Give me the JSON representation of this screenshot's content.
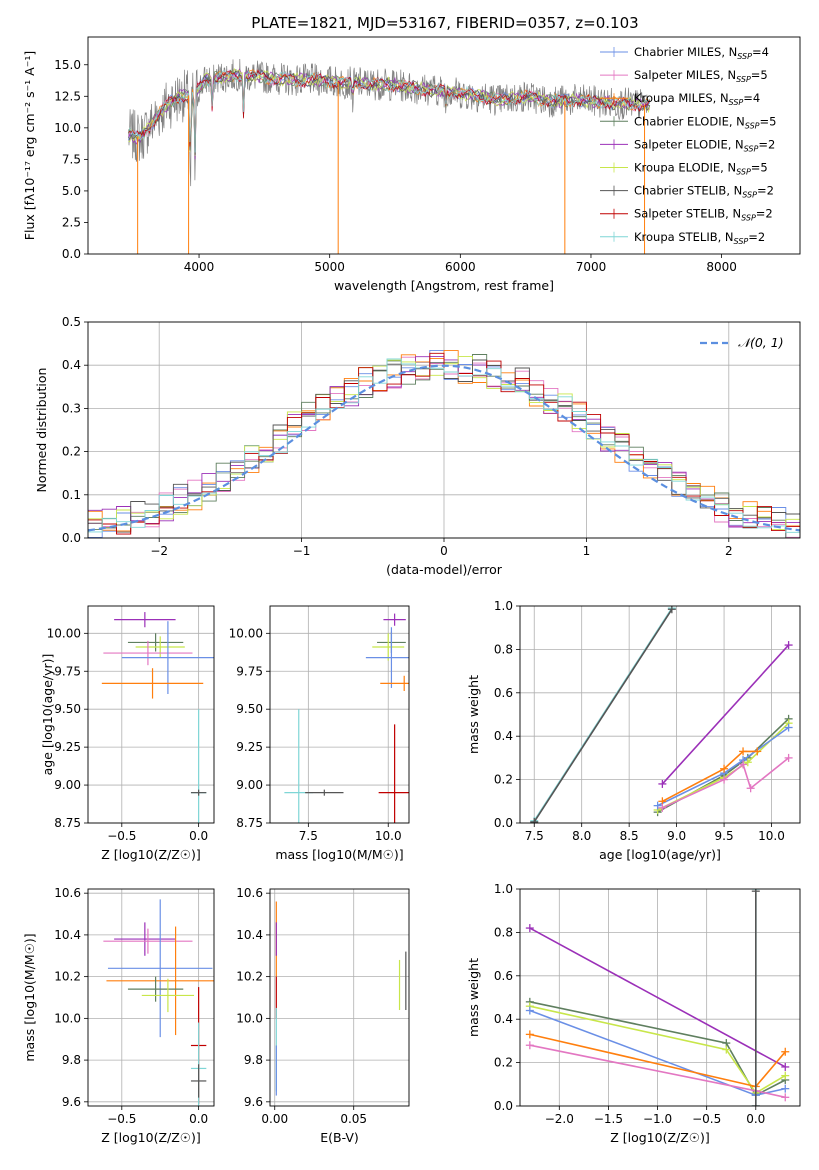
{
  "figure_title": "PLATE=1821, MJD=53167, FIBERID=0357, z=0.103",
  "colors": {
    "Chabrier MILES": "#1f77b4",
    "Salpeter MILES": "#e377c2",
    "Kroupa MILES": "#ff7f0e",
    "Chabrier ELODIE": "#5f7f5f",
    "Salpeter ELODIE": "#9b30b8",
    "Kroupa ELODIE": "#c8e64a",
    "Chabrier STELIB": "#555555",
    "Salpeter STELIB": "#c00000",
    "Kroupa STELIB": "#7fd6d6",
    "normal_curve": "#5b8fe0",
    "Chabrier MILES (alt)": "#6a8fe6"
  },
  "chart_data": [
    {
      "id": "spectrum",
      "type": "line",
      "xlabel": "wavelength [Angstrom, rest frame]",
      "ylabel": "Flux [fλ10⁻¹⁷ erg cm⁻² s⁻¹ A⁻¹]",
      "xlim": [
        3150,
        8600
      ],
      "ylim": [
        0,
        17.2
      ],
      "xticks": [
        4000,
        5000,
        6000,
        7000,
        8000
      ],
      "yticks": [
        0.0,
        2.5,
        5.0,
        7.5,
        10.0,
        12.5,
        15.0
      ],
      "legend_position": "top-right",
      "legend": [
        {
          "label": "Chabrier MILES, N",
          "sub": "SSP",
          "tail": "=4",
          "color": "#6a8fe6"
        },
        {
          "label": "Salpeter MILES, N",
          "sub": "SSP",
          "tail": "=5",
          "color": "#e377c2"
        },
        {
          "label": "Kroupa MILES, N",
          "sub": "SSP",
          "tail": "=4",
          "color": "#ff7f0e"
        },
        {
          "label": "Chabrier ELODIE, N",
          "sub": "SSP",
          "tail": "=5",
          "color": "#5f7f5f"
        },
        {
          "label": "Salpeter ELODIE, N",
          "sub": "SSP",
          "tail": "=2",
          "color": "#9b30b8"
        },
        {
          "label": "Kroupa ELODIE, N",
          "sub": "SSP",
          "tail": "=5",
          "color": "#c8e64a"
        },
        {
          "label": "Chabrier STELIB, N",
          "sub": "SSP",
          "tail": "=2",
          "color": "#555555"
        },
        {
          "label": "Salpeter STELIB, N",
          "sub": "SSP",
          "tail": "=2",
          "color": "#c00000"
        },
        {
          "label": "Kroupa STELIB, N",
          "sub": "SSP",
          "tail": "=2",
          "color": "#7fd6d6"
        }
      ],
      "continuum": {
        "x": [
          3450,
          3550,
          3650,
          3750,
          3850,
          3950,
          4050,
          4150,
          4300,
          4500,
          4700,
          4900,
          5100,
          5300,
          5500,
          5700,
          5900,
          6100,
          6300,
          6500,
          6700,
          6900,
          7100,
          7300,
          7450
        ],
        "y": [
          9.5,
          9.2,
          10.5,
          11.8,
          12.5,
          12.6,
          13.8,
          14.0,
          14.2,
          14.0,
          13.8,
          13.8,
          13.6,
          13.5,
          13.4,
          13.1,
          12.9,
          12.6,
          12.2,
          12.5,
          12.1,
          12.2,
          12.0,
          11.9,
          11.8
        ]
      },
      "absorption_features": [
        {
          "x": 3934,
          "y": 4.5
        },
        {
          "x": 3968,
          "y": 6.0
        },
        {
          "x": 4102,
          "y": 11.0
        },
        {
          "x": 4340,
          "y": 10.5
        },
        {
          "x": 5175,
          "y": 12.0
        },
        {
          "x": 5890,
          "y": 11.6
        },
        {
          "x": 6563,
          "y": 13.2
        }
      ],
      "data_edges": [
        {
          "x": 3530,
          "y": 0.0
        },
        {
          "x": 3920,
          "y": 0.0
        },
        {
          "x": 5065,
          "y": 0.0
        },
        {
          "x": 6800,
          "y": 0.0
        },
        {
          "x": 7410,
          "y": 0.0
        }
      ]
    },
    {
      "id": "residuals",
      "type": "step",
      "xlabel": "(data-model)/error",
      "ylabel": "Normed distribution",
      "xlim": [
        -2.5,
        2.5
      ],
      "ylim": [
        0,
        0.5
      ],
      "xticks": [
        -2,
        -1,
        0,
        1,
        2
      ],
      "yticks": [
        0.0,
        0.1,
        0.2,
        0.3,
        0.4,
        0.5
      ],
      "grid": true,
      "legend_position": "top-right",
      "legend": [
        {
          "label": "𝒩(0, 1)",
          "color": "#5b8fe0",
          "style": "dashed"
        }
      ],
      "bin_centers": [
        -2.45,
        -2.35,
        -2.25,
        -2.15,
        -2.05,
        -1.95,
        -1.85,
        -1.75,
        -1.65,
        -1.55,
        -1.45,
        -1.35,
        -1.25,
        -1.15,
        -1.05,
        -0.95,
        -0.85,
        -0.75,
        -0.65,
        -0.55,
        -0.45,
        -0.35,
        -0.25,
        -0.15,
        -0.05,
        0.05,
        0.15,
        0.25,
        0.35,
        0.45,
        0.55,
        0.65,
        0.75,
        0.85,
        0.95,
        1.05,
        1.15,
        1.25,
        1.35,
        1.45,
        1.55,
        1.65,
        1.75,
        1.85,
        1.95,
        2.05,
        2.15,
        2.25,
        2.35,
        2.45
      ],
      "base": [
        0.03,
        0.04,
        0.04,
        0.05,
        0.06,
        0.07,
        0.09,
        0.1,
        0.12,
        0.14,
        0.16,
        0.18,
        0.21,
        0.23,
        0.26,
        0.28,
        0.3,
        0.32,
        0.34,
        0.36,
        0.37,
        0.38,
        0.39,
        0.39,
        0.4,
        0.4,
        0.39,
        0.39,
        0.38,
        0.37,
        0.36,
        0.34,
        0.32,
        0.3,
        0.28,
        0.26,
        0.23,
        0.21,
        0.18,
        0.16,
        0.14,
        0.12,
        0.1,
        0.09,
        0.07,
        0.06,
        0.05,
        0.04,
        0.04,
        0.03
      ]
    },
    {
      "id": "age_vs_Z",
      "type": "errorbar",
      "xlabel": "Z [log10(Z/Z☉)]",
      "ylabel": "age  [log10(age/yr)]",
      "xlim": [
        -0.72,
        0.1
      ],
      "ylim": [
        8.75,
        10.18
      ],
      "xticks": [
        -0.5,
        0.0
      ],
      "yticks": [
        8.75,
        9.0,
        9.25,
        9.5,
        9.75,
        10.0
      ],
      "grid": true,
      "points": [
        {
          "x": -0.35,
          "y": 10.09,
          "xerr": 0.2,
          "yerr": 0.05,
          "color": "#9b30b8"
        },
        {
          "x": -0.28,
          "y": 9.94,
          "xerr": 0.18,
          "yerr": 0.06,
          "color": "#5f7f5f"
        },
        {
          "x": -0.25,
          "y": 9.91,
          "xerr": 0.16,
          "yerr": 0.07,
          "color": "#c8e64a"
        },
        {
          "x": -0.33,
          "y": 9.87,
          "xerr": 0.29,
          "yerr": 0.08,
          "color": "#e377c2"
        },
        {
          "x": -0.2,
          "y": 9.84,
          "xerr": 0.3,
          "yerr": 0.24,
          "color": "#6a8fe6"
        },
        {
          "x": -0.3,
          "y": 9.67,
          "xerr": 0.33,
          "yerr": 0.1,
          "color": "#ff7f0e"
        },
        {
          "x": 0.0,
          "y": 8.95,
          "xerr": 0.05,
          "yerr": 0.55,
          "color": "#7fd6d6"
        },
        {
          "x": 0.0,
          "y": 8.95,
          "xerr": 0.05,
          "yerr": 0.02,
          "color": "#555555"
        }
      ]
    },
    {
      "id": "age_vs_mass",
      "type": "errorbar",
      "xlabel": "mass [log10(M/M☉)]",
      "ylabel": "",
      "xlim": [
        6.3,
        10.65
      ],
      "ylim": [
        8.75,
        10.18
      ],
      "xticks": [
        7.5,
        10.0
      ],
      "yticks": [
        8.75,
        9.0,
        9.25,
        9.5,
        9.75,
        10.0
      ],
      "grid": true,
      "points": [
        {
          "x": 10.2,
          "y": 10.09,
          "xerr": 0.35,
          "yerr": 0.04,
          "color": "#9b30b8"
        },
        {
          "x": 10.1,
          "y": 9.94,
          "xerr": 0.45,
          "yerr": 0.07,
          "color": "#5f7f5f"
        },
        {
          "x": 10.0,
          "y": 9.91,
          "xerr": 0.5,
          "yerr": 0.09,
          "color": "#c8e64a"
        },
        {
          "x": 10.1,
          "y": 9.84,
          "xerr": 0.8,
          "yerr": 0.2,
          "color": "#6a8fe6"
        },
        {
          "x": 10.5,
          "y": 9.67,
          "xerr": 0.75,
          "yerr": 0.05,
          "color": "#ff7f0e"
        },
        {
          "x": 7.2,
          "y": 8.95,
          "xerr": 0.45,
          "yerr": 0.55,
          "color": "#7fd6d6"
        },
        {
          "x": 10.2,
          "y": 8.95,
          "xerr": 0.5,
          "yerr": 0.45,
          "color": "#c00000"
        },
        {
          "x": 8.0,
          "y": 8.95,
          "xerr": 0.6,
          "yerr": 0.02,
          "color": "#555555"
        }
      ]
    },
    {
      "id": "massweight_vs_age",
      "type": "line",
      "xlabel": "age  [log10(age/yr)]",
      "ylabel": "mass weight",
      "xlim": [
        7.35,
        10.3
      ],
      "ylim": [
        0,
        1.0
      ],
      "xticks": [
        7.5,
        8.0,
        8.5,
        9.0,
        9.5,
        10.0
      ],
      "yticks": [
        0.0,
        0.2,
        0.4,
        0.6,
        0.8,
        1.0
      ],
      "grid": true,
      "series": [
        {
          "color": "#7fd6d6",
          "x": [
            7.5,
            8.95
          ],
          "y": [
            0.01,
            0.99
          ]
        },
        {
          "color": "#555555",
          "x": [
            7.5,
            8.95
          ],
          "y": [
            0.005,
            0.985
          ]
        },
        {
          "color": "#9b30b8",
          "x": [
            8.85,
            10.18
          ],
          "y": [
            0.18,
            0.82
          ]
        },
        {
          "color": "#5f7f5f",
          "x": [
            8.8,
            9.5,
            9.75,
            10.18
          ],
          "y": [
            0.05,
            0.22,
            0.3,
            0.48
          ]
        },
        {
          "color": "#c8e64a",
          "x": [
            8.8,
            9.5,
            9.75,
            10.18
          ],
          "y": [
            0.06,
            0.21,
            0.28,
            0.46
          ]
        },
        {
          "color": "#6a8fe6",
          "x": [
            8.8,
            9.5,
            9.7,
            10.18
          ],
          "y": [
            0.08,
            0.23,
            0.29,
            0.44
          ]
        },
        {
          "color": "#ff7f0e",
          "x": [
            8.85,
            9.5,
            9.7,
            9.85
          ],
          "y": [
            0.1,
            0.25,
            0.33,
            0.33
          ]
        },
        {
          "color": "#e377c2",
          "x": [
            8.85,
            9.5,
            9.7,
            9.78,
            10.18
          ],
          "y": [
            0.07,
            0.2,
            0.27,
            0.16,
            0.3
          ]
        }
      ]
    },
    {
      "id": "mass_vs_Z",
      "type": "errorbar",
      "xlabel": "Z [log10(Z/Z☉)]",
      "ylabel": "mass [log10(M/M☉)]",
      "xlim": [
        -0.72,
        0.1
      ],
      "ylim": [
        9.58,
        10.62
      ],
      "xticks": [
        -0.5,
        0.0
      ],
      "yticks": [
        9.6,
        9.8,
        10.0,
        10.2,
        10.4,
        10.6
      ],
      "grid": true,
      "points": [
        {
          "x": -0.35,
          "y": 10.38,
          "xerr": 0.2,
          "yerr": 0.08,
          "color": "#9b30b8"
        },
        {
          "x": -0.33,
          "y": 10.37,
          "xerr": 0.29,
          "yerr": 0.06,
          "color": "#e377c2"
        },
        {
          "x": -0.25,
          "y": 10.24,
          "xerr": 0.34,
          "yerr": 0.33,
          "color": "#6a8fe6"
        },
        {
          "x": -0.15,
          "y": 10.18,
          "xerr": 0.45,
          "yerr": 0.26,
          "color": "#ff7f0e"
        },
        {
          "x": -0.28,
          "y": 10.14,
          "xerr": 0.18,
          "yerr": 0.06,
          "color": "#5f7f5f"
        },
        {
          "x": -0.2,
          "y": 10.11,
          "xerr": 0.17,
          "yerr": 0.08,
          "color": "#c8e64a"
        },
        {
          "x": 0.0,
          "y": 9.87,
          "xerr": 0.05,
          "yerr": 0.28,
          "color": "#c00000"
        },
        {
          "x": 0.0,
          "y": 9.76,
          "xerr": 0.05,
          "yerr": 0.22,
          "color": "#7fd6d6"
        },
        {
          "x": 0.0,
          "y": 9.7,
          "xerr": 0.05,
          "yerr": 0.08,
          "color": "#555555"
        }
      ]
    },
    {
      "id": "mass_vs_ebv",
      "type": "errorbar",
      "xlabel": "E(B-V)",
      "ylabel": "",
      "xlim": [
        -0.003,
        0.085
      ],
      "ylim": [
        9.58,
        10.62
      ],
      "xticks": [
        0.0,
        0.05
      ],
      "yticks": [
        9.6,
        9.8,
        10.0,
        10.2,
        10.4,
        10.6
      ],
      "grid": true,
      "points": [
        {
          "x": 0.001,
          "y": 10.38,
          "xerr": 0,
          "yerr": 0.18,
          "color": "#ff7f0e"
        },
        {
          "x": 0.001,
          "y": 10.38,
          "xerr": 0,
          "yerr": 0.08,
          "color": "#9b30b8"
        },
        {
          "x": 0.001,
          "y": 10.1,
          "xerr": 0,
          "yerr": 0.1,
          "color": "#c00000"
        },
        {
          "x": 0.001,
          "y": 9.85,
          "xerr": 0,
          "yerr": 0.2,
          "color": "#7fd6d6"
        },
        {
          "x": 0.001,
          "y": 9.75,
          "xerr": 0,
          "yerr": 0.12,
          "color": "#6a8fe6"
        },
        {
          "x": 0.079,
          "y": 10.16,
          "xerr": 0,
          "yerr": 0.12,
          "color": "#c8e64a"
        },
        {
          "x": 0.083,
          "y": 10.18,
          "xerr": 0,
          "yerr": 0.14,
          "color": "#555555"
        }
      ]
    },
    {
      "id": "massweight_vs_Z",
      "type": "line",
      "xlabel": "Z [log10(Z/Z☉)]",
      "ylabel": "mass weight",
      "xlim": [
        -2.4,
        0.45
      ],
      "ylim": [
        0,
        1.0
      ],
      "xticks": [
        -2.0,
        -1.5,
        -1.0,
        -0.5,
        0.0
      ],
      "yticks": [
        0.0,
        0.2,
        0.4,
        0.6,
        0.8,
        1.0
      ],
      "grid": true,
      "series": [
        {
          "color": "#9b30b8",
          "x": [
            -2.3,
            0.3
          ],
          "y": [
            0.82,
            0.18
          ]
        },
        {
          "color": "#5f7f5f",
          "x": [
            -2.3,
            -0.3,
            0.0,
            0.3
          ],
          "y": [
            0.48,
            0.29,
            0.05,
            0.12
          ]
        },
        {
          "color": "#c8e64a",
          "x": [
            -2.3,
            -0.3,
            0.0,
            0.3
          ],
          "y": [
            0.46,
            0.26,
            0.06,
            0.14
          ]
        },
        {
          "color": "#6a8fe6",
          "x": [
            -2.3,
            0.0,
            0.3
          ],
          "y": [
            0.44,
            0.05,
            0.08
          ]
        },
        {
          "color": "#ff7f0e",
          "x": [
            -2.3,
            0.0,
            0.3
          ],
          "y": [
            0.33,
            0.09,
            0.25
          ]
        },
        {
          "color": "#e377c2",
          "x": [
            -2.3,
            0.0,
            0.3
          ],
          "y": [
            0.28,
            0.07,
            0.04
          ]
        },
        {
          "color": "#7fd6d6",
          "x": [
            0.0,
            0.0
          ],
          "y": [
            0.0,
            1.0
          ]
        },
        {
          "color": "#555555",
          "x": [
            0.0,
            0.0
          ],
          "y": [
            0.0,
            0.99
          ]
        }
      ]
    }
  ]
}
